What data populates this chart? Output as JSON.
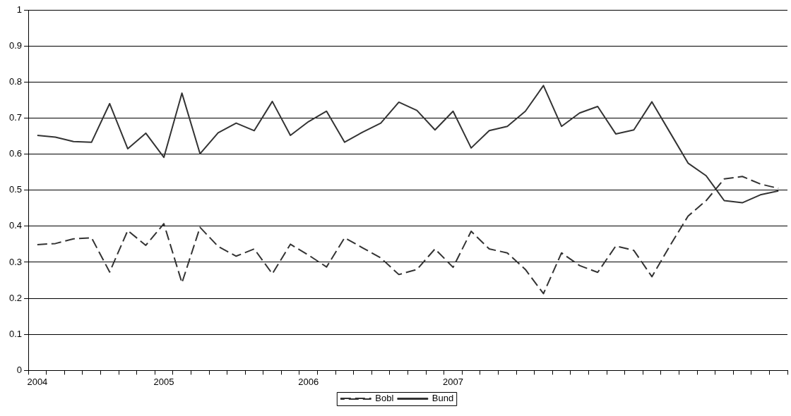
{
  "chart_data": {
    "type": "line",
    "categories": [
      "2004",
      null,
      null,
      null,
      null,
      null,
      null,
      "2005",
      null,
      null,
      null,
      null,
      null,
      null,
      null,
      "2006",
      null,
      null,
      null,
      null,
      null,
      null,
      null,
      "2007",
      null,
      null,
      null,
      null,
      null,
      null,
      null,
      null,
      null,
      null,
      null,
      null,
      null,
      null,
      null,
      null,
      null,
      null
    ],
    "series": [
      {
        "name": "Bobl",
        "color": "#333333",
        "line_style": "dashed",
        "values": [
          0.349,
          0.352,
          0.365,
          0.368,
          0.273,
          0.388,
          0.347,
          0.407,
          0.243,
          0.397,
          0.344,
          0.317,
          0.337,
          0.268,
          0.35,
          0.32,
          0.287,
          0.368,
          0.34,
          0.312,
          0.266,
          0.28,
          0.337,
          0.286,
          0.386,
          0.337,
          0.326,
          0.28,
          0.213,
          0.326,
          0.291,
          0.272,
          0.345,
          0.333,
          0.26,
          0.346,
          0.428,
          0.471,
          0.531,
          0.538,
          0.517,
          0.505
        ]
      },
      {
        "name": "Bund",
        "color": "#333333",
        "line_style": "solid",
        "values": [
          0.652,
          0.647,
          0.635,
          0.633,
          0.74,
          0.615,
          0.658,
          0.591,
          0.769,
          0.601,
          0.659,
          0.686,
          0.665,
          0.746,
          0.652,
          0.69,
          0.719,
          0.633,
          0.661,
          0.686,
          0.744,
          0.721,
          0.667,
          0.719,
          0.617,
          0.665,
          0.677,
          0.719,
          0.79,
          0.677,
          0.714,
          0.732,
          0.656,
          0.667,
          0.745,
          0.66,
          0.575,
          0.54,
          0.471,
          0.465,
          0.487,
          0.498
        ]
      }
    ],
    "ylim": [
      0,
      1
    ],
    "yticks": [
      0,
      0.1,
      0.2,
      0.3,
      0.4,
      0.5,
      0.6,
      0.7,
      0.8,
      0.9,
      1
    ],
    "grid": "y",
    "legend": "bottom",
    "marker": "none"
  }
}
